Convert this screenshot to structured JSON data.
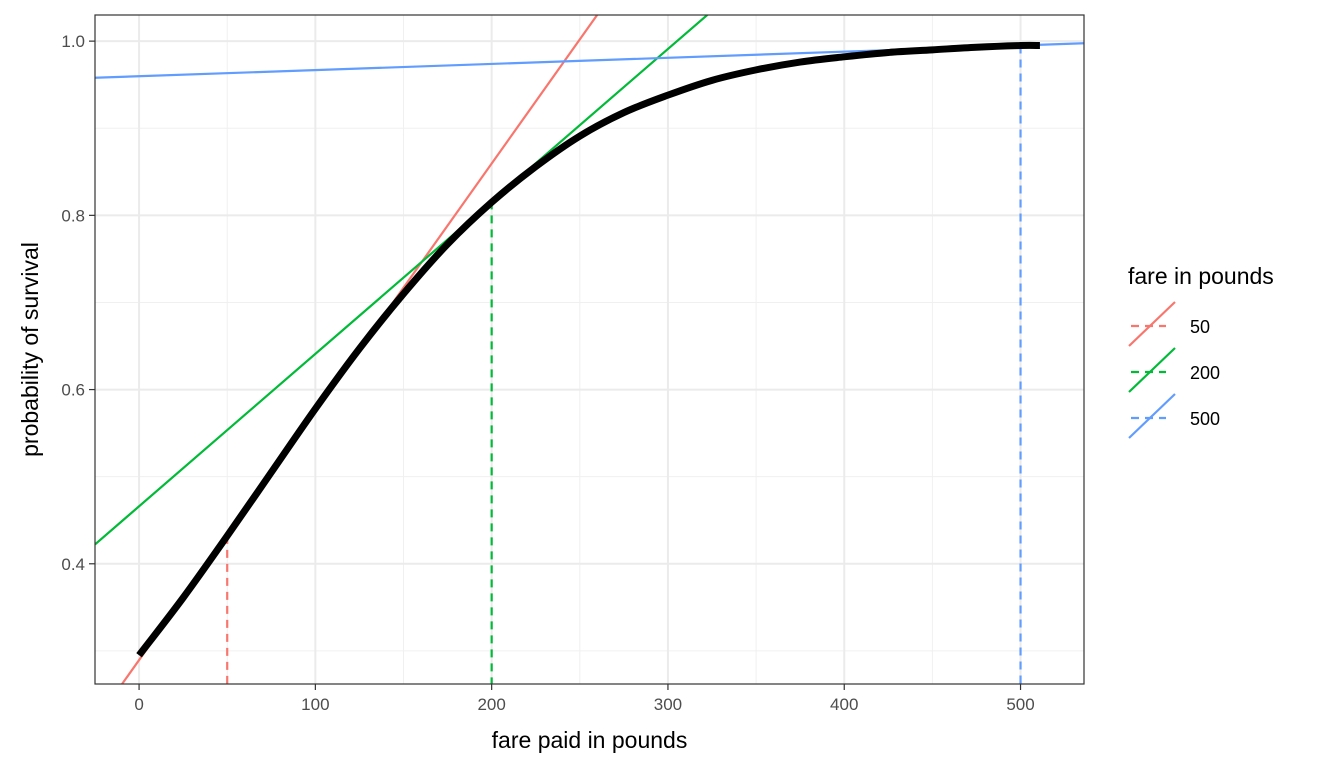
{
  "chart_data": {
    "type": "line",
    "xlabel": "fare paid in pounds",
    "ylabel": "probability of survival",
    "xlim": [
      -25,
      536
    ],
    "ylim": [
      0.262,
      1.03
    ],
    "x_ticks": [
      0,
      100,
      200,
      300,
      400,
      500
    ],
    "x_tick_labels": [
      "0",
      "100",
      "200",
      "300",
      "400",
      "500"
    ],
    "y_ticks": [
      0.4,
      0.6,
      0.8,
      1.0
    ],
    "y_tick_labels": [
      "0.4",
      "0.6",
      "0.8",
      "1.0"
    ],
    "grid": true,
    "legend": {
      "title": "fare in pounds",
      "position": "right",
      "entries": [
        "50",
        "200",
        "500"
      ]
    },
    "curve": {
      "x": [
        0,
        25,
        50,
        75,
        100,
        125,
        150,
        175,
        200,
        225,
        250,
        275,
        300,
        325,
        350,
        375,
        400,
        425,
        450,
        475,
        500,
        511
      ],
      "y": [
        0.295,
        0.361,
        0.432,
        0.505,
        0.578,
        0.647,
        0.71,
        0.767,
        0.815,
        0.856,
        0.891,
        0.918,
        0.938,
        0.955,
        0.967,
        0.976,
        0.982,
        0.987,
        0.99,
        0.993,
        0.995,
        0.995
      ]
    },
    "series": [
      {
        "name": "50",
        "color": "#F8766D",
        "fare": 50,
        "probability": 0.432,
        "slope": 0.00285,
        "line_style": "tangent solid, marker dashed"
      },
      {
        "name": "200",
        "color": "#00BA38",
        "fare": 200,
        "probability": 0.816,
        "slope": 0.00175,
        "line_style": "tangent solid, marker dashed"
      },
      {
        "name": "500",
        "color": "#619CFF",
        "fare": 500,
        "probability": 0.995,
        "slope": 7.06e-05,
        "line_style": "tangent solid, marker dashed"
      }
    ]
  }
}
